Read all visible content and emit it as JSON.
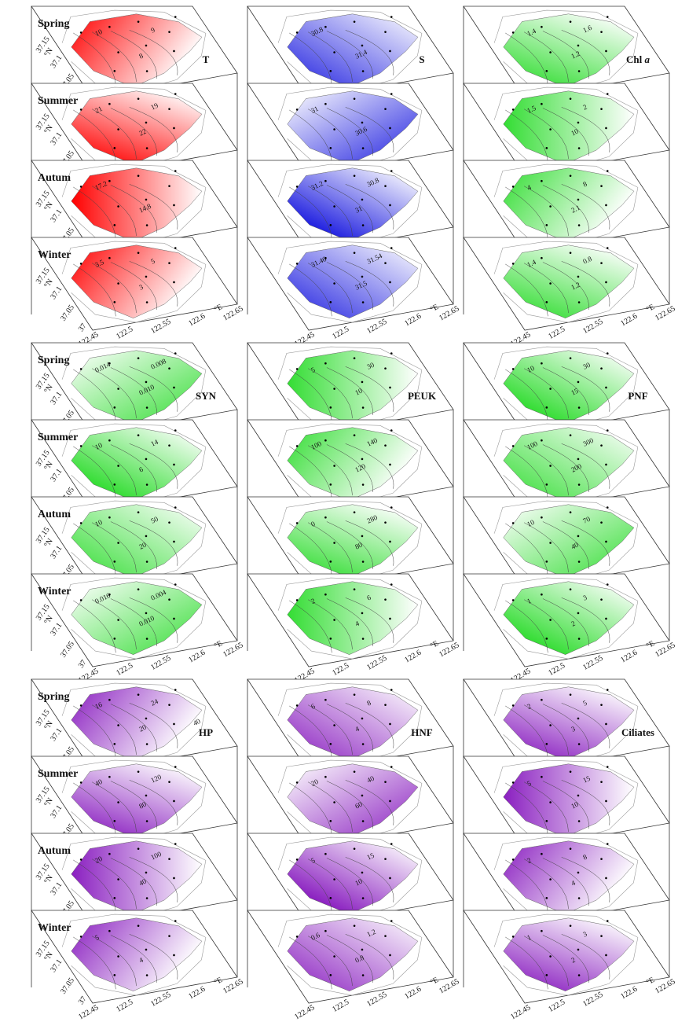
{
  "seasons": [
    "Spring",
    "Summer",
    "Autum",
    "Winter"
  ],
  "lat_ticks": [
    "37.15",
    "37.1",
    "37.05",
    "37"
  ],
  "lat_unit": "°N",
  "lon_ticks": [
    "122.45",
    "122.5",
    "122.55",
    "122.6",
    "122.65"
  ],
  "lon_unit": "°E",
  "panels": [
    {
      "label": "T",
      "color": "#ff0000",
      "contours": [
        [
          "10",
          "8",
          "9"
        ],
        [
          "21",
          "22",
          "19"
        ],
        [
          "17.2",
          "14.8"
        ],
        [
          "3.5",
          "3",
          "5"
        ]
      ]
    },
    {
      "label": "S",
      "color": "#2020e0",
      "contours": [
        [
          "30.8",
          "31.4"
        ],
        [
          "31",
          "30.6"
        ],
        [
          "31.2",
          "31",
          "30.8"
        ],
        [
          "31.46",
          "31.5",
          "31.54"
        ]
      ]
    },
    {
      "label": "Chl",
      "label_italic": "a",
      "color": "#33dd33",
      "contours": [
        [
          "1.4",
          "1.2",
          "1.6"
        ],
        [
          "1.5",
          "10",
          "2"
        ],
        [
          "4",
          "2.1",
          "8"
        ],
        [
          "1.4",
          "1.2",
          "0.8"
        ]
      ]
    },
    {
      "label": "SYN",
      "color": "#33dd33",
      "contours": [
        [
          "0.014",
          "0.010",
          "0.008"
        ],
        [
          "10",
          "6",
          "14"
        ],
        [
          "10",
          "20",
          "50"
        ],
        [
          "0.016",
          "0.010",
          "0.004"
        ]
      ]
    },
    {
      "label": "PEUK",
      "color": "#33dd33",
      "contours": [
        [
          "5",
          "10",
          "30"
        ],
        [
          "100",
          "120",
          "140"
        ],
        [
          "0",
          "80",
          "280"
        ],
        [
          "2",
          "4",
          "6"
        ]
      ]
    },
    {
      "label": "PNF",
      "color": "#33dd33",
      "contours": [
        [
          "10",
          "15",
          "30"
        ],
        [
          "100",
          "200",
          "300"
        ],
        [
          "10",
          "40",
          "70"
        ],
        [
          "1",
          "2",
          "3"
        ]
      ]
    },
    {
      "label": "HP",
      "color": "#8a1fc0",
      "contours": [
        [
          "16",
          "20",
          "24",
          "40"
        ],
        [
          "40",
          "80",
          "120"
        ],
        [
          "20",
          "40",
          "100"
        ],
        [
          "5",
          "4"
        ]
      ]
    },
    {
      "label": "HNF",
      "color": "#8a1fc0",
      "contours": [
        [
          "6",
          "4",
          "8"
        ],
        [
          "20",
          "60",
          "40"
        ],
        [
          "5",
          "10",
          "15"
        ],
        [
          "0.6",
          "0.8",
          "1.2"
        ]
      ]
    },
    {
      "label": "Ciliates",
      "color": "#8a1fc0",
      "contours": [
        [
          "2",
          "3",
          "5"
        ],
        [
          "5",
          "10",
          "15"
        ],
        [
          "2",
          "4",
          "8"
        ],
        [
          "1",
          "2",
          "3"
        ]
      ]
    }
  ]
}
